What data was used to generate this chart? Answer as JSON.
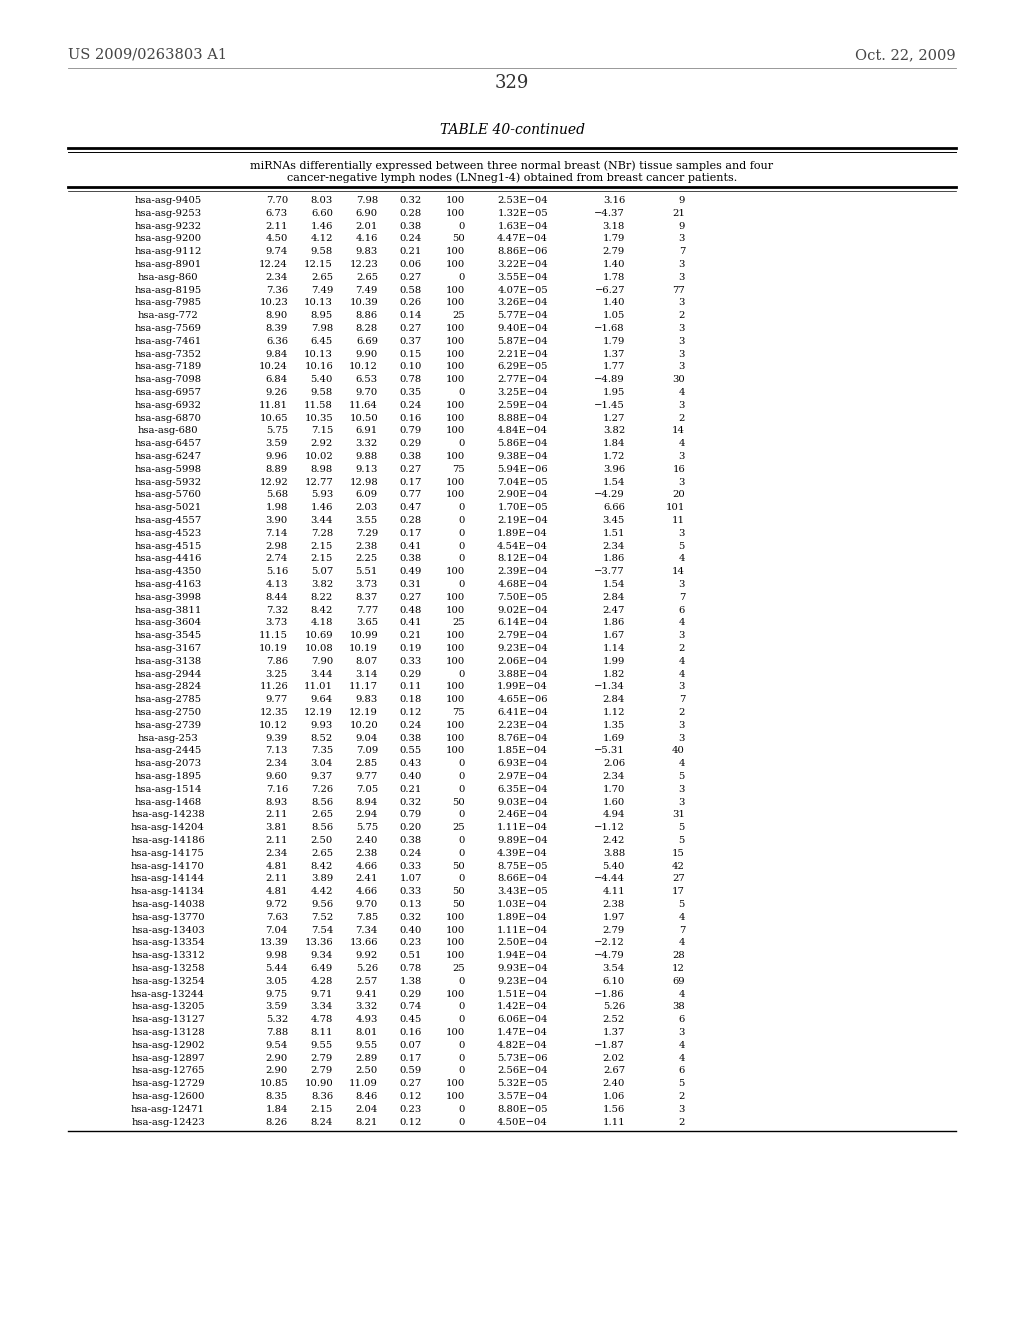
{
  "header_left": "US 2009/0263803 A1",
  "header_right": "Oct. 22, 2009",
  "page_number": "329",
  "table_title": "TABLE 40-continued",
  "table_subtitle_line1": "miRNAs differentially expressed between three normal breast (NBr) tissue samples and four",
  "table_subtitle_line2": "cancer-negative lymph nodes (LNneg1-4) obtained from breast cancer patients.",
  "rows": [
    [
      "hsa-asg-9405",
      "7.70",
      "8.03",
      "7.98",
      "0.32",
      "100",
      "2.53E−04",
      "3.16",
      "9"
    ],
    [
      "hsa-asg-9253",
      "6.73",
      "6.60",
      "6.90",
      "0.28",
      "100",
      "1.32E−05",
      "−4.37",
      "21"
    ],
    [
      "hsa-asg-9232",
      "2.11",
      "1.46",
      "2.01",
      "0.38",
      "0",
      "1.63E−04",
      "3.18",
      "9"
    ],
    [
      "hsa-asg-9200",
      "4.50",
      "4.12",
      "4.16",
      "0.24",
      "50",
      "4.47E−04",
      "1.79",
      "3"
    ],
    [
      "hsa-asg-9112",
      "9.74",
      "9.58",
      "9.83",
      "0.21",
      "100",
      "8.86E−06",
      "2.79",
      "7"
    ],
    [
      "hsa-asg-8901",
      "12.24",
      "12.15",
      "12.23",
      "0.06",
      "100",
      "3.22E−04",
      "1.40",
      "3"
    ],
    [
      "hsa-asg-860",
      "2.34",
      "2.65",
      "2.65",
      "0.27",
      "0",
      "3.55E−04",
      "1.78",
      "3"
    ],
    [
      "hsa-asg-8195",
      "7.36",
      "7.49",
      "7.49",
      "0.58",
      "100",
      "4.07E−05",
      "−6.27",
      "77"
    ],
    [
      "hsa-asg-7985",
      "10.23",
      "10.13",
      "10.39",
      "0.26",
      "100",
      "3.26E−04",
      "1.40",
      "3"
    ],
    [
      "hsa-asg-772",
      "8.90",
      "8.95",
      "8.86",
      "0.14",
      "25",
      "5.77E−04",
      "1.05",
      "2"
    ],
    [
      "hsa-asg-7569",
      "8.39",
      "7.98",
      "8.28",
      "0.27",
      "100",
      "9.40E−04",
      "−1.68",
      "3"
    ],
    [
      "hsa-asg-7461",
      "6.36",
      "6.45",
      "6.69",
      "0.37",
      "100",
      "5.87E−04",
      "1.79",
      "3"
    ],
    [
      "hsa-asg-7352",
      "9.84",
      "10.13",
      "9.90",
      "0.15",
      "100",
      "2.21E−04",
      "1.37",
      "3"
    ],
    [
      "hsa-asg-7189",
      "10.24",
      "10.16",
      "10.12",
      "0.10",
      "100",
      "6.29E−05",
      "1.77",
      "3"
    ],
    [
      "hsa-asg-7098",
      "6.84",
      "5.40",
      "6.53",
      "0.78",
      "100",
      "2.77E−04",
      "−4.89",
      "30"
    ],
    [
      "hsa-asg-6957",
      "9.26",
      "9.58",
      "9.70",
      "0.35",
      "0",
      "3.25E−04",
      "1.95",
      "4"
    ],
    [
      "hsa-asg-6932",
      "11.81",
      "11.58",
      "11.64",
      "0.24",
      "100",
      "2.59E−04",
      "−1.45",
      "3"
    ],
    [
      "hsa-asg-6870",
      "10.65",
      "10.35",
      "10.50",
      "0.16",
      "100",
      "8.88E−04",
      "1.27",
      "2"
    ],
    [
      "hsa-asg-680",
      "5.75",
      "7.15",
      "6.91",
      "0.79",
      "100",
      "4.84E−04",
      "3.82",
      "14"
    ],
    [
      "hsa-asg-6457",
      "3.59",
      "2.92",
      "3.32",
      "0.29",
      "0",
      "5.86E−04",
      "1.84",
      "4"
    ],
    [
      "hsa-asg-6247",
      "9.96",
      "10.02",
      "9.88",
      "0.38",
      "100",
      "9.38E−04",
      "1.72",
      "3"
    ],
    [
      "hsa-asg-5998",
      "8.89",
      "8.98",
      "9.13",
      "0.27",
      "75",
      "5.94E−06",
      "3.96",
      "16"
    ],
    [
      "hsa-asg-5932",
      "12.92",
      "12.77",
      "12.98",
      "0.17",
      "100",
      "7.04E−05",
      "1.54",
      "3"
    ],
    [
      "hsa-asg-5760",
      "5.68",
      "5.93",
      "6.09",
      "0.77",
      "100",
      "2.90E−04",
      "−4.29",
      "20"
    ],
    [
      "hsa-asg-5021",
      "1.98",
      "1.46",
      "2.03",
      "0.47",
      "0",
      "1.70E−05",
      "6.66",
      "101"
    ],
    [
      "hsa-asg-4557",
      "3.90",
      "3.44",
      "3.55",
      "0.28",
      "0",
      "2.19E−04",
      "3.45",
      "11"
    ],
    [
      "hsa-asg-4523",
      "7.14",
      "7.28",
      "7.29",
      "0.17",
      "0",
      "1.89E−04",
      "1.51",
      "3"
    ],
    [
      "hsa-asg-4515",
      "2.98",
      "2.15",
      "2.38",
      "0.41",
      "0",
      "4.54E−04",
      "2.34",
      "5"
    ],
    [
      "hsa-asg-4416",
      "2.74",
      "2.15",
      "2.25",
      "0.38",
      "0",
      "8.12E−04",
      "1.86",
      "4"
    ],
    [
      "hsa-asg-4350",
      "5.16",
      "5.07",
      "5.51",
      "0.49",
      "100",
      "2.39E−04",
      "−3.77",
      "14"
    ],
    [
      "hsa-asg-4163",
      "4.13",
      "3.82",
      "3.73",
      "0.31",
      "0",
      "4.68E−04",
      "1.54",
      "3"
    ],
    [
      "hsa-asg-3998",
      "8.44",
      "8.22",
      "8.37",
      "0.27",
      "100",
      "7.50E−05",
      "2.84",
      "7"
    ],
    [
      "hsa-asg-3811",
      "7.32",
      "8.42",
      "7.77",
      "0.48",
      "100",
      "9.02E−04",
      "2.47",
      "6"
    ],
    [
      "hsa-asg-3604",
      "3.73",
      "4.18",
      "3.65",
      "0.41",
      "25",
      "6.14E−04",
      "1.86",
      "4"
    ],
    [
      "hsa-asg-3545",
      "11.15",
      "10.69",
      "10.99",
      "0.21",
      "100",
      "2.79E−04",
      "1.67",
      "3"
    ],
    [
      "hsa-asg-3167",
      "10.19",
      "10.08",
      "10.19",
      "0.19",
      "100",
      "9.23E−04",
      "1.14",
      "2"
    ],
    [
      "hsa-asg-3138",
      "7.86",
      "7.90",
      "8.07",
      "0.33",
      "100",
      "2.06E−04",
      "1.99",
      "4"
    ],
    [
      "hsa-asg-2944",
      "3.25",
      "3.44",
      "3.14",
      "0.29",
      "0",
      "3.88E−04",
      "1.82",
      "4"
    ],
    [
      "hsa-asg-2824",
      "11.26",
      "11.01",
      "11.17",
      "0.11",
      "100",
      "1.99E−04",
      "−1.34",
      "3"
    ],
    [
      "hsa-asg-2785",
      "9.77",
      "9.64",
      "9.83",
      "0.18",
      "100",
      "4.65E−06",
      "2.84",
      "7"
    ],
    [
      "hsa-asg-2750",
      "12.35",
      "12.19",
      "12.19",
      "0.12",
      "75",
      "6.41E−04",
      "1.12",
      "2"
    ],
    [
      "hsa-asg-2739",
      "10.12",
      "9.93",
      "10.20",
      "0.24",
      "100",
      "2.23E−04",
      "1.35",
      "3"
    ],
    [
      "hsa-asg-253",
      "9.39",
      "8.52",
      "9.04",
      "0.38",
      "100",
      "8.76E−04",
      "1.69",
      "3"
    ],
    [
      "hsa-asg-2445",
      "7.13",
      "7.35",
      "7.09",
      "0.55",
      "100",
      "1.85E−04",
      "−5.31",
      "40"
    ],
    [
      "hsa-asg-2073",
      "2.34",
      "3.04",
      "2.85",
      "0.43",
      "0",
      "6.93E−04",
      "2.06",
      "4"
    ],
    [
      "hsa-asg-1895",
      "9.60",
      "9.37",
      "9.77",
      "0.40",
      "0",
      "2.97E−04",
      "2.34",
      "5"
    ],
    [
      "hsa-asg-1514",
      "7.16",
      "7.26",
      "7.05",
      "0.21",
      "0",
      "6.35E−04",
      "1.70",
      "3"
    ],
    [
      "hsa-asg-1468",
      "8.93",
      "8.56",
      "8.94",
      "0.32",
      "50",
      "9.03E−04",
      "1.60",
      "3"
    ],
    [
      "hsa-asg-14238",
      "2.11",
      "2.65",
      "2.94",
      "0.79",
      "0",
      "2.46E−04",
      "4.94",
      "31"
    ],
    [
      "hsa-asg-14204",
      "3.81",
      "8.56",
      "5.75",
      "0.20",
      "25",
      "1.11E−04",
      "−1.12",
      "5"
    ],
    [
      "hsa-asg-14186",
      "2.11",
      "2.50",
      "2.40",
      "0.38",
      "0",
      "9.89E−04",
      "2.42",
      "5"
    ],
    [
      "hsa-asg-14175",
      "2.34",
      "2.65",
      "2.38",
      "0.24",
      "0",
      "4.39E−04",
      "3.88",
      "15"
    ],
    [
      "hsa-asg-14170",
      "4.81",
      "8.42",
      "4.66",
      "0.33",
      "50",
      "8.75E−05",
      "5.40",
      "42"
    ],
    [
      "hsa-asg-14144",
      "2.11",
      "3.89",
      "2.41",
      "1.07",
      "0",
      "8.66E−04",
      "−4.44",
      "27"
    ],
    [
      "hsa-asg-14134",
      "4.81",
      "4.42",
      "4.66",
      "0.33",
      "50",
      "3.43E−05",
      "4.11",
      "17"
    ],
    [
      "hsa-asg-14038",
      "9.72",
      "9.56",
      "9.70",
      "0.13",
      "50",
      "1.03E−04",
      "2.38",
      "5"
    ],
    [
      "hsa-asg-13770",
      "7.63",
      "7.52",
      "7.85",
      "0.32",
      "100",
      "1.89E−04",
      "1.97",
      "4"
    ],
    [
      "hsa-asg-13403",
      "7.04",
      "7.54",
      "7.34",
      "0.40",
      "100",
      "1.11E−04",
      "2.79",
      "7"
    ],
    [
      "hsa-asg-13354",
      "13.39",
      "13.36",
      "13.66",
      "0.23",
      "100",
      "2.50E−04",
      "−2.12",
      "4"
    ],
    [
      "hsa-asg-13312",
      "9.98",
      "9.34",
      "9.92",
      "0.51",
      "100",
      "1.94E−04",
      "−4.79",
      "28"
    ],
    [
      "hsa-asg-13258",
      "5.44",
      "6.49",
      "5.26",
      "0.78",
      "25",
      "9.93E−04",
      "3.54",
      "12"
    ],
    [
      "hsa-asg-13254",
      "3.05",
      "4.28",
      "2.57",
      "1.38",
      "0",
      "9.23E−04",
      "6.10",
      "69"
    ],
    [
      "hsa-asg-13244",
      "9.75",
      "9.71",
      "9.41",
      "0.29",
      "100",
      "1.51E−04",
      "−1.86",
      "4"
    ],
    [
      "hsa-asg-13205",
      "3.59",
      "3.34",
      "3.32",
      "0.74",
      "0",
      "1.42E−04",
      "5.26",
      "38"
    ],
    [
      "hsa-asg-13127",
      "5.32",
      "4.78",
      "4.93",
      "0.45",
      "0",
      "6.06E−04",
      "2.52",
      "6"
    ],
    [
      "hsa-asg-13128",
      "7.88",
      "8.11",
      "8.01",
      "0.16",
      "100",
      "1.47E−04",
      "1.37",
      "3"
    ],
    [
      "hsa-asg-12902",
      "9.54",
      "9.55",
      "9.55",
      "0.07",
      "0",
      "4.82E−04",
      "−1.87",
      "4"
    ],
    [
      "hsa-asg-12897",
      "2.90",
      "2.79",
      "2.89",
      "0.17",
      "0",
      "5.73E−06",
      "2.02",
      "4"
    ],
    [
      "hsa-asg-12765",
      "2.90",
      "2.79",
      "2.50",
      "0.59",
      "0",
      "2.56E−04",
      "2.67",
      "6"
    ],
    [
      "hsa-asg-12729",
      "10.85",
      "10.90",
      "11.09",
      "0.27",
      "100",
      "5.32E−05",
      "2.40",
      "5"
    ],
    [
      "hsa-asg-12600",
      "8.35",
      "8.36",
      "8.46",
      "0.12",
      "100",
      "3.57E−04",
      "1.06",
      "2"
    ],
    [
      "hsa-asg-12471",
      "1.84",
      "2.15",
      "2.04",
      "0.23",
      "0",
      "8.80E−05",
      "1.56",
      "3"
    ],
    [
      "hsa-asg-12423",
      "8.26",
      "8.24",
      "8.21",
      "0.12",
      "0",
      "4.50E−04",
      "1.11",
      "2"
    ]
  ]
}
